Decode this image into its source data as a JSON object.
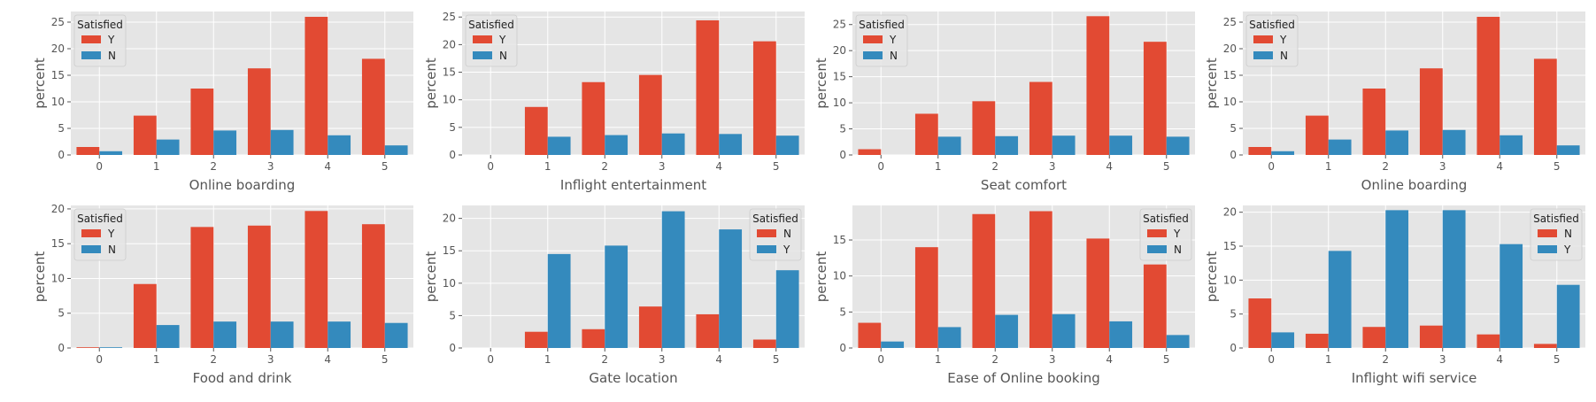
{
  "colors": {
    "red": "#E24A33",
    "blue": "#348ABD",
    "panel": "#E5E5E5",
    "grid": "#FFFFFF",
    "text": "#555555"
  },
  "chart_data": [
    {
      "type": "bar",
      "xlabel": "Online boarding",
      "ylabel": "percent",
      "categories": [
        "0",
        "1",
        "2",
        "3",
        "4",
        "5"
      ],
      "ylim": [
        0,
        27
      ],
      "yticks": [
        0,
        5,
        10,
        15,
        20,
        25
      ],
      "legend": {
        "title": "Satisfied",
        "position": "top-left"
      },
      "series": [
        {
          "name": "Y",
          "color": "#E24A33",
          "values": [
            1.5,
            7.4,
            12.5,
            16.3,
            26.0,
            18.1
          ]
        },
        {
          "name": "N",
          "color": "#348ABD",
          "values": [
            0.7,
            2.9,
            4.6,
            4.7,
            3.7,
            1.8
          ]
        }
      ]
    },
    {
      "type": "bar",
      "xlabel": "Inflight entertainment",
      "ylabel": "percent",
      "categories": [
        "0",
        "1",
        "2",
        "3",
        "4",
        "5"
      ],
      "ylim": [
        0,
        26
      ],
      "yticks": [
        0,
        5,
        10,
        15,
        20,
        25
      ],
      "legend": {
        "title": "Satisfied",
        "position": "top-left"
      },
      "series": [
        {
          "name": "Y",
          "color": "#E24A33",
          "values": [
            0.0,
            8.7,
            13.2,
            14.5,
            24.4,
            20.6
          ]
        },
        {
          "name": "N",
          "color": "#348ABD",
          "values": [
            0.0,
            3.3,
            3.6,
            3.9,
            3.8,
            3.5
          ]
        }
      ]
    },
    {
      "type": "bar",
      "xlabel": "Seat comfort",
      "ylabel": "percent",
      "categories": [
        "0",
        "1",
        "2",
        "3",
        "4",
        "5"
      ],
      "ylim": [
        0,
        27.5
      ],
      "yticks": [
        0,
        5,
        10,
        15,
        20,
        25
      ],
      "legend": {
        "title": "Satisfied",
        "position": "top-left"
      },
      "series": [
        {
          "name": "Y",
          "color": "#E24A33",
          "values": [
            1.1,
            7.9,
            10.3,
            14.0,
            26.6,
            21.7
          ]
        },
        {
          "name": "N",
          "color": "#348ABD",
          "values": [
            0.0,
            3.5,
            3.6,
            3.7,
            3.7,
            3.5
          ]
        }
      ]
    },
    {
      "type": "bar",
      "xlabel": "Online boarding",
      "ylabel": "percent",
      "categories": [
        "0",
        "1",
        "2",
        "3",
        "4",
        "5"
      ],
      "ylim": [
        0,
        27
      ],
      "yticks": [
        0,
        5,
        10,
        15,
        20,
        25
      ],
      "legend": {
        "title": "Satisfied",
        "position": "top-left"
      },
      "series": [
        {
          "name": "Y",
          "color": "#E24A33",
          "values": [
            1.5,
            7.4,
            12.5,
            16.3,
            26.0,
            18.1
          ]
        },
        {
          "name": "N",
          "color": "#348ABD",
          "values": [
            0.7,
            2.9,
            4.6,
            4.7,
            3.7,
            1.8
          ]
        }
      ]
    },
    {
      "type": "bar",
      "xlabel": "Food and drink",
      "ylabel": "percent",
      "categories": [
        "0",
        "1",
        "2",
        "3",
        "4",
        "5"
      ],
      "ylim": [
        0,
        20.5
      ],
      "yticks": [
        0,
        5,
        10,
        15,
        20
      ],
      "legend": {
        "title": "Satisfied",
        "position": "top-left"
      },
      "series": [
        {
          "name": "Y",
          "color": "#E24A33",
          "values": [
            0.1,
            9.2,
            17.4,
            17.6,
            19.7,
            17.8
          ]
        },
        {
          "name": "N",
          "color": "#348ABD",
          "values": [
            0.1,
            3.3,
            3.8,
            3.8,
            3.8,
            3.6
          ]
        }
      ]
    },
    {
      "type": "bar",
      "xlabel": "Gate location",
      "ylabel": "percent",
      "categories": [
        "0",
        "1",
        "2",
        "3",
        "4",
        "5"
      ],
      "ylim": [
        0,
        22
      ],
      "yticks": [
        0,
        5,
        10,
        15,
        20
      ],
      "legend": {
        "title": "Satisfied",
        "position": "top-right"
      },
      "series": [
        {
          "name": "N",
          "color": "#E24A33",
          "values": [
            0.0,
            2.5,
            2.9,
            6.4,
            5.2,
            1.3
          ]
        },
        {
          "name": "Y",
          "color": "#348ABD",
          "values": [
            0.0,
            14.5,
            15.8,
            21.1,
            18.3,
            12.0
          ]
        }
      ]
    },
    {
      "type": "bar",
      "xlabel": "Ease of Online booking",
      "ylabel": "percent",
      "categories": [
        "0",
        "1",
        "2",
        "3",
        "4",
        "5"
      ],
      "ylim": [
        0,
        19.8
      ],
      "yticks": [
        0,
        5,
        10,
        15
      ],
      "legend": {
        "title": "Satisfied",
        "position": "top-right"
      },
      "series": [
        {
          "name": "Y",
          "color": "#E24A33",
          "values": [
            3.5,
            14.0,
            18.6,
            19.0,
            15.2,
            11.6
          ]
        },
        {
          "name": "N",
          "color": "#348ABD",
          "values": [
            0.9,
            2.9,
            4.6,
            4.7,
            3.7,
            1.8
          ]
        }
      ]
    },
    {
      "type": "bar",
      "xlabel": "Inflight wifi service",
      "ylabel": "percent",
      "categories": [
        "0",
        "1",
        "2",
        "3",
        "4",
        "5"
      ],
      "ylim": [
        0,
        21
      ],
      "yticks": [
        0,
        5,
        10,
        15,
        20
      ],
      "legend": {
        "title": "Satisfied",
        "position": "top-right"
      },
      "series": [
        {
          "name": "N",
          "color": "#E24A33",
          "values": [
            7.3,
            2.1,
            3.1,
            3.3,
            2.0,
            0.6
          ]
        },
        {
          "name": "Y",
          "color": "#348ABD",
          "values": [
            2.3,
            14.3,
            20.3,
            20.3,
            15.3,
            9.3
          ]
        }
      ]
    }
  ]
}
